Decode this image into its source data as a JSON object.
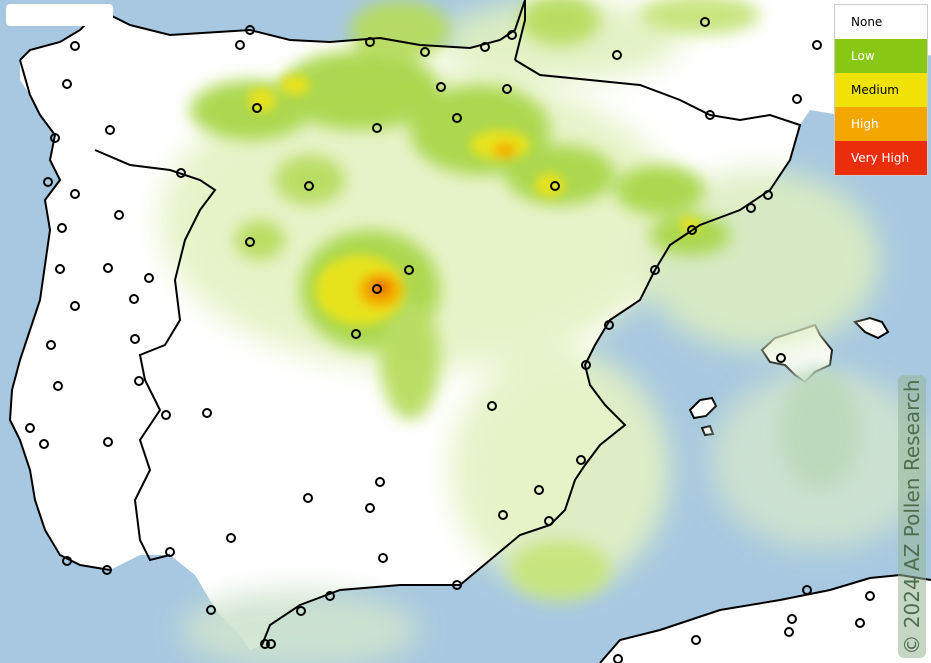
{
  "legend": {
    "items": [
      {
        "label": "None",
        "color": "#ffffff",
        "text_color": "#000000"
      },
      {
        "label": "Low",
        "color": "#88c714",
        "text_color": "#ffffff"
      },
      {
        "label": "Medium",
        "color": "#f0e206",
        "text_color": "#000000"
      },
      {
        "label": "High",
        "color": "#f4a600",
        "text_color": "#ffffff"
      },
      {
        "label": "Very High",
        "color": "#ea2d0b",
        "text_color": "#ffffff"
      }
    ]
  },
  "watermark": "© 2024 AZ Pollen Research",
  "colors": {
    "sea": "#a7c8e0",
    "land": "#ffffff",
    "low_tint": "#e4f2c4",
    "low": "#a9d649",
    "medium": "#e6e31e",
    "high": "#f4b000",
    "very_high": "#ea6a00",
    "station": "#000000",
    "border": "#000000"
  }
}
